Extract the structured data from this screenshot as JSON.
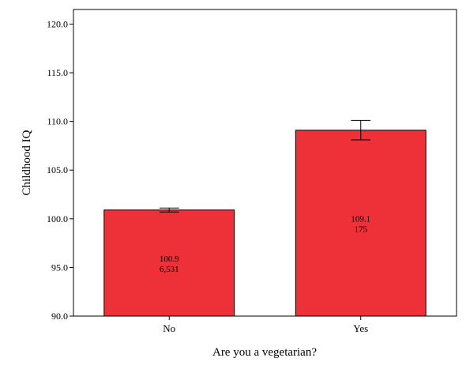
{
  "chart_data": {
    "type": "bar",
    "xlabel": "Are you a vegetarian?",
    "ylabel": "Childhood IQ",
    "categories": [
      "No",
      "Yes"
    ],
    "values": [
      100.9,
      109.1
    ],
    "error_bars": [
      {
        "low": 100.7,
        "high": 101.1
      },
      {
        "low": 108.1,
        "high": 110.1
      }
    ],
    "bar_labels": [
      {
        "mean": "100.9",
        "n": "6,531"
      },
      {
        "mean": "109.1",
        "n": "175"
      }
    ],
    "ylim": [
      90,
      121.5
    ],
    "yticks": [
      90,
      95,
      100,
      105,
      110,
      115,
      120
    ],
    "ytick_labels": [
      "90.0",
      "95.0",
      "100.0",
      "105.0",
      "110.0",
      "115.0",
      "120.0"
    ],
    "bar_color": "#ee3039",
    "grid": false,
    "legend": "none"
  }
}
